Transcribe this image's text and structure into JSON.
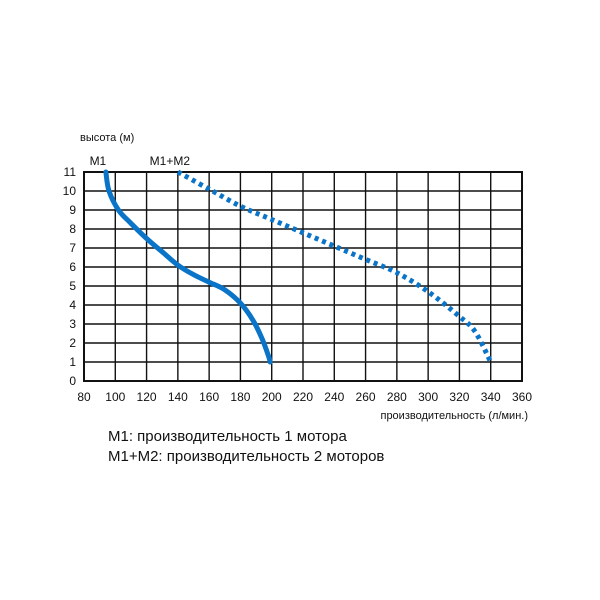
{
  "chart_data": {
    "type": "line",
    "ylabel": "высота (м)",
    "xlabel": "производительность (л/мин.)",
    "xlim": [
      80,
      360
    ],
    "ylim": [
      0,
      11
    ],
    "xticks": [
      80,
      100,
      120,
      140,
      160,
      180,
      200,
      220,
      240,
      260,
      280,
      300,
      320,
      340,
      360
    ],
    "yticks": [
      0,
      1,
      2,
      3,
      4,
      5,
      6,
      7,
      8,
      9,
      10,
      11
    ],
    "grid": true,
    "series": [
      {
        "name": "M1",
        "style": "solid",
        "color": "#0a74c8",
        "points": [
          [
            94,
            11
          ],
          [
            96,
            10
          ],
          [
            102,
            9
          ],
          [
            110,
            8.3
          ],
          [
            120,
            7.5
          ],
          [
            130,
            6.8
          ],
          [
            140,
            6.1
          ],
          [
            150,
            5.6
          ],
          [
            160,
            5.2
          ],
          [
            170,
            4.8
          ],
          [
            180,
            4.1
          ],
          [
            188,
            3.2
          ],
          [
            194,
            2.2
          ],
          [
            198,
            1.3
          ],
          [
            199,
            1.0
          ]
        ]
      },
      {
        "name": "M1+M2",
        "style": "dotted",
        "color": "#0a74c8",
        "points": [
          [
            140,
            11
          ],
          [
            160,
            10.1
          ],
          [
            180,
            9.2
          ],
          [
            200,
            8.5
          ],
          [
            220,
            7.8
          ],
          [
            240,
            7.1
          ],
          [
            260,
            6.4
          ],
          [
            280,
            5.7
          ],
          [
            300,
            4.7
          ],
          [
            320,
            3.4
          ],
          [
            330,
            2.6
          ],
          [
            340,
            1.0
          ]
        ]
      }
    ]
  },
  "notes": [
    "M1: производительность 1 мотора",
    "M1+M2: производительность 2 моторов"
  ]
}
